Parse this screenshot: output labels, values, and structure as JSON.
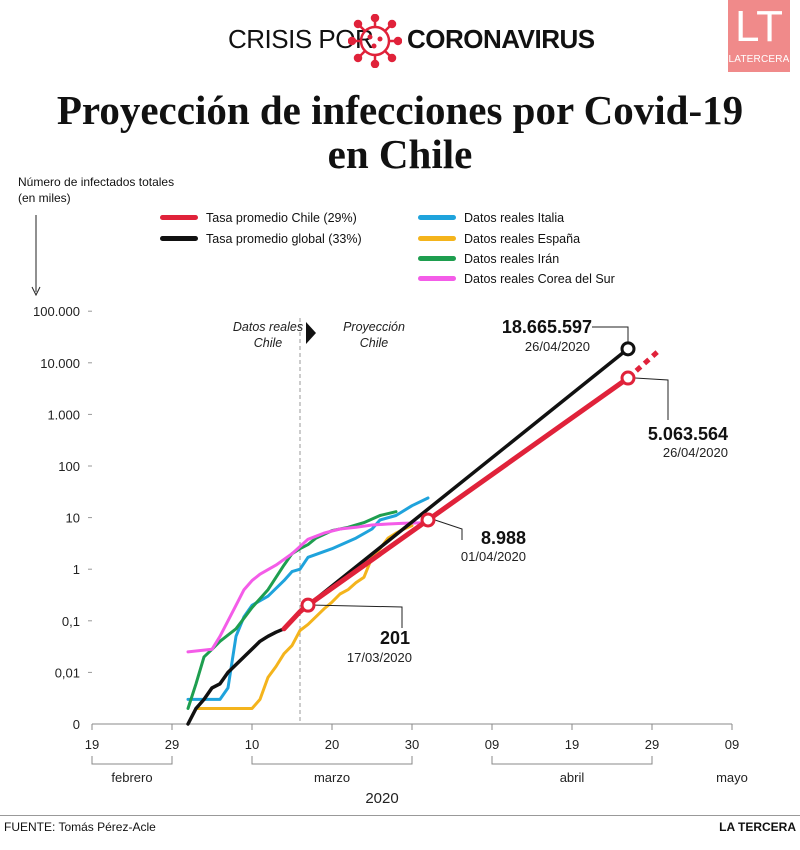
{
  "header": {
    "prefix": "CRISIS POR",
    "topic": "CORONAVIRUS",
    "logo_letters": "LT",
    "logo_name": "LATERCERA"
  },
  "title_line1": "Proyección de infecciones por Covid-19",
  "title_line2": "en Chile",
  "ylabel_line1": "Número de infectados totales",
  "ylabel_line2": "(en miles)",
  "footer": {
    "source": "FUENTE: Tomás Pérez-Acle",
    "brand": "LA TERCERA"
  },
  "colors": {
    "chile": "#e0223a",
    "global": "#111111",
    "italia": "#1fa3dc",
    "espana": "#f4b41c",
    "iran": "#1e9e4f",
    "corea": "#f45ce8",
    "logo_bg": "#f08a8a"
  },
  "chart_data": {
    "type": "line",
    "yscale": "log",
    "xlabel": "2020",
    "ylabel": "Número de infectados totales (en miles)",
    "ytick_labels": [
      "0",
      "0,01",
      "0,1",
      "1",
      "10",
      "100",
      "1.000",
      "10.000",
      "100.000"
    ],
    "yticks": [
      0.001,
      0.01,
      0.1,
      1,
      10,
      100,
      1000,
      10000,
      100000
    ],
    "xtick_labels": [
      "19",
      "29",
      "10",
      "20",
      "30",
      "09",
      "19",
      "29",
      "09"
    ],
    "xticks": [
      "2020-02-19",
      "2020-02-29",
      "2020-03-10",
      "2020-03-20",
      "2020-03-30",
      "2020-04-09",
      "2020-04-19",
      "2020-04-29",
      "2020-05-09"
    ],
    "months": [
      {
        "label": "febrero",
        "start": "2020-02-19",
        "end": "2020-02-29"
      },
      {
        "label": "marzo",
        "start": "2020-03-10",
        "end": "2020-03-30"
      },
      {
        "label": "abril",
        "start": "2020-04-09",
        "end": "2020-04-29"
      },
      {
        "label": "mayo",
        "start": "2020-05-09",
        "end": "2020-05-09"
      }
    ],
    "regions": {
      "divider": "2020-03-16",
      "left_label": [
        "Datos reales",
        "Chile"
      ],
      "right_label": [
        "Proyección",
        "Chile"
      ]
    },
    "series": [
      {
        "name": "Tasa promedio Chile (29%)",
        "color": "#e0223a",
        "width": 5,
        "points": [
          [
            "2020-03-14",
            0.07
          ],
          [
            "2020-03-16",
            0.15
          ],
          [
            "2020-03-17",
            0.201
          ],
          [
            "2020-04-01",
            8.988
          ],
          [
            "2020-04-26",
            5063.564
          ]
        ],
        "dashed_extension": [
          [
            "2020-04-26",
            5063.564
          ],
          [
            "2020-04-30",
            18000
          ]
        ]
      },
      {
        "name": "Tasa promedio global (33%)",
        "color": "#111111",
        "width": 3.5,
        "points": [
          [
            "2020-03-02",
            0.001
          ],
          [
            "2020-03-03",
            0.002
          ],
          [
            "2020-03-04",
            0.003
          ],
          [
            "2020-03-05",
            0.005
          ],
          [
            "2020-03-06",
            0.006
          ],
          [
            "2020-03-07",
            0.01
          ],
          [
            "2020-03-09",
            0.02
          ],
          [
            "2020-03-11",
            0.04
          ],
          [
            "2020-03-12",
            0.05
          ],
          [
            "2020-03-13",
            0.06
          ],
          [
            "2020-03-14",
            0.07
          ],
          [
            "2020-03-15",
            0.1
          ],
          [
            "2020-03-16",
            0.15
          ],
          [
            "2020-03-17",
            0.2
          ],
          [
            "2020-04-26",
            18665.597
          ]
        ]
      },
      {
        "name": "Datos reales Italia",
        "color": "#1fa3dc",
        "width": 3,
        "points": [
          [
            "2020-03-02",
            0.003
          ],
          [
            "2020-03-04",
            0.003
          ],
          [
            "2020-03-06",
            0.003
          ],
          [
            "2020-03-07",
            0.005
          ],
          [
            "2020-03-08",
            0.05
          ],
          [
            "2020-03-09",
            0.12
          ],
          [
            "2020-03-10",
            0.2
          ],
          [
            "2020-03-12",
            0.3
          ],
          [
            "2020-03-14",
            0.6
          ],
          [
            "2020-03-15",
            0.9
          ],
          [
            "2020-03-16",
            1.0
          ],
          [
            "2020-03-17",
            1.7
          ],
          [
            "2020-03-20",
            2.5
          ],
          [
            "2020-03-23",
            4.0
          ],
          [
            "2020-03-25",
            6.0
          ],
          [
            "2020-03-26",
            9.0
          ],
          [
            "2020-03-28",
            11
          ],
          [
            "2020-03-30",
            17
          ],
          [
            "2020-04-01",
            24
          ]
        ]
      },
      {
        "name": "Datos reales España",
        "color": "#f4b41c",
        "width": 3,
        "points": [
          [
            "2020-03-03",
            0.002
          ],
          [
            "2020-03-06",
            0.002
          ],
          [
            "2020-03-10",
            0.002
          ],
          [
            "2020-03-11",
            0.003
          ],
          [
            "2020-03-12",
            0.008
          ],
          [
            "2020-03-13",
            0.013
          ],
          [
            "2020-03-14",
            0.023
          ],
          [
            "2020-03-15",
            0.033
          ],
          [
            "2020-03-16",
            0.065
          ],
          [
            "2020-03-17",
            0.085
          ],
          [
            "2020-03-18",
            0.12
          ],
          [
            "2020-03-19",
            0.17
          ],
          [
            "2020-03-20",
            0.23
          ],
          [
            "2020-03-21",
            0.33
          ],
          [
            "2020-03-22",
            0.4
          ],
          [
            "2020-03-23",
            0.55
          ],
          [
            "2020-03-24",
            0.7
          ],
          [
            "2020-03-25",
            1.7
          ],
          [
            "2020-03-26",
            2.5
          ],
          [
            "2020-03-27",
            4.0
          ],
          [
            "2020-03-28",
            5.0
          ],
          [
            "2020-03-29",
            6.0
          ],
          [
            "2020-03-30",
            7.0
          ]
        ]
      },
      {
        "name": "Datos reales Irán",
        "color": "#1e9e4f",
        "width": 3,
        "points": [
          [
            "2020-03-02",
            0.002
          ],
          [
            "2020-03-03",
            0.006
          ],
          [
            "2020-03-04",
            0.02
          ],
          [
            "2020-03-05",
            0.028
          ],
          [
            "2020-03-06",
            0.04
          ],
          [
            "2020-03-08",
            0.07
          ],
          [
            "2020-03-10",
            0.18
          ],
          [
            "2020-03-12",
            0.4
          ],
          [
            "2020-03-14",
            1.2
          ],
          [
            "2020-03-15",
            2.0
          ],
          [
            "2020-03-16",
            2.5
          ],
          [
            "2020-03-17",
            3.0
          ],
          [
            "2020-03-18",
            4.0
          ],
          [
            "2020-03-20",
            5.6
          ],
          [
            "2020-03-22",
            6.5
          ],
          [
            "2020-03-24",
            8.0
          ],
          [
            "2020-03-26",
            11
          ],
          [
            "2020-03-28",
            13
          ]
        ]
      },
      {
        "name": "Datos reales Corea del Sur",
        "color": "#f45ce8",
        "width": 3,
        "points": [
          [
            "2020-03-02",
            0.025
          ],
          [
            "2020-03-05",
            0.028
          ],
          [
            "2020-03-06",
            0.05
          ],
          [
            "2020-03-07",
            0.1
          ],
          [
            "2020-03-08",
            0.2
          ],
          [
            "2020-03-09",
            0.4
          ],
          [
            "2020-03-10",
            0.6
          ],
          [
            "2020-03-11",
            0.8
          ],
          [
            "2020-03-13",
            1.2
          ],
          [
            "2020-03-15",
            2.0
          ],
          [
            "2020-03-17",
            3.8
          ],
          [
            "2020-03-19",
            5.0
          ],
          [
            "2020-03-21",
            6.0
          ],
          [
            "2020-03-23",
            6.5
          ],
          [
            "2020-03-25",
            7.2
          ],
          [
            "2020-03-27",
            7.5
          ],
          [
            "2020-03-29",
            7.8
          ],
          [
            "2020-03-31",
            7.9
          ]
        ]
      }
    ],
    "annotations": [
      {
        "value": "18.665.597",
        "date_label": "26/04/2020",
        "date": "2020-04-26",
        "y": 18665.597,
        "series": "Tasa promedio global (33%)"
      },
      {
        "value": "5.063.564",
        "date_label": "26/04/2020",
        "date": "2020-04-26",
        "y": 5063.564,
        "series": "Tasa promedio Chile (29%)"
      },
      {
        "value": "8.988",
        "date_label": "01/04/2020",
        "date": "2020-04-01",
        "y": 8.988,
        "series": "Tasa promedio Chile (29%)"
      },
      {
        "value": "201",
        "date_label": "17/03/2020",
        "date": "2020-03-17",
        "y": 0.201,
        "series": "Tasa promedio Chile (29%)"
      }
    ],
    "legend_position": "top"
  }
}
